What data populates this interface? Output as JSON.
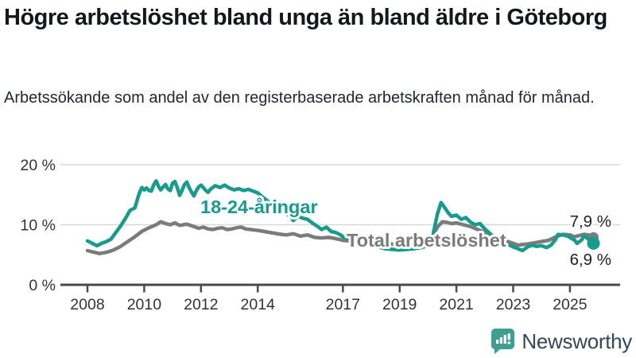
{
  "header": {
    "title": "Högre arbetslöshet bland unga än bland äldre i Göteborg",
    "subtitle": "Arbetssökande som andel av den registerbaserade arbetskraften månad för månad."
  },
  "footer": {
    "brand": "Newsworthy"
  },
  "colors": {
    "young_line": "#169c8f",
    "total_line": "#7b7b7b",
    "axis": "#4a4a4a",
    "gridline": "#d9d9d9",
    "tick_text": "#333333",
    "value_label": "#222222",
    "brand_text": "#33475b",
    "brand_icon": "#3d9e91"
  },
  "chart_data": {
    "type": "line",
    "title": "Högre arbetslöshet bland unga än bland äldre i Göteborg",
    "subtitle": "Arbetssökande som andel av den registerbaserade arbetskraften månad för månad.",
    "xlabel": "",
    "ylabel": "",
    "x_axis": {
      "unit": "year",
      "ticks": [
        2008,
        2010,
        2012,
        2014,
        2017,
        2019,
        2021,
        2023,
        2025
      ],
      "range": [
        2007.9,
        2026.8
      ]
    },
    "y_axis": {
      "tick_values": [
        0,
        10,
        20
      ],
      "tick_labels": [
        "0 %",
        "10 %",
        "20 %"
      ],
      "range": [
        0,
        22
      ],
      "grid": true
    },
    "series": [
      {
        "name": "Total arbetslöshet",
        "key": "total",
        "color": "#7b7b7b",
        "end_label": "7,9 %",
        "end_value": 7.9,
        "points": [
          [
            2008.0,
            5.7
          ],
          [
            2008.25,
            5.4
          ],
          [
            2008.42,
            5.2
          ],
          [
            2008.67,
            5.4
          ],
          [
            2008.92,
            5.8
          ],
          [
            2009.17,
            6.4
          ],
          [
            2009.42,
            7.2
          ],
          [
            2009.67,
            8.0
          ],
          [
            2009.92,
            8.9
          ],
          [
            2010.17,
            9.5
          ],
          [
            2010.42,
            10.0
          ],
          [
            2010.58,
            10.5
          ],
          [
            2010.75,
            10.2
          ],
          [
            2010.92,
            10.0
          ],
          [
            2011.08,
            10.3
          ],
          [
            2011.25,
            9.9
          ],
          [
            2011.5,
            10.1
          ],
          [
            2011.75,
            9.7
          ],
          [
            2011.92,
            9.4
          ],
          [
            2012.08,
            9.6
          ],
          [
            2012.25,
            9.3
          ],
          [
            2012.42,
            9.2
          ],
          [
            2012.58,
            9.4
          ],
          [
            2012.75,
            9.5
          ],
          [
            2012.92,
            9.2
          ],
          [
            2013.08,
            9.3
          ],
          [
            2013.25,
            9.5
          ],
          [
            2013.42,
            9.6
          ],
          [
            2013.58,
            9.3
          ],
          [
            2013.75,
            9.2
          ],
          [
            2013.92,
            9.1
          ],
          [
            2014.08,
            9.0
          ],
          [
            2014.33,
            8.8
          ],
          [
            2014.58,
            8.6
          ],
          [
            2014.83,
            8.4
          ],
          [
            2015.0,
            8.3
          ],
          [
            2015.25,
            8.5
          ],
          [
            2015.5,
            8.1
          ],
          [
            2015.75,
            8.3
          ],
          [
            2016.0,
            7.9
          ],
          [
            2016.25,
            7.8
          ],
          [
            2016.5,
            7.9
          ],
          [
            2016.75,
            7.7
          ],
          [
            2017.0,
            7.4
          ],
          [
            2017.25,
            7.3
          ],
          [
            2017.5,
            7.2
          ],
          [
            2017.75,
            7.1
          ],
          [
            2018.0,
            7.0
          ],
          [
            2018.33,
            6.9
          ],
          [
            2018.67,
            6.8
          ],
          [
            2019.0,
            6.8
          ],
          [
            2019.33,
            6.9
          ],
          [
            2019.67,
            7.0
          ],
          [
            2020.0,
            7.2
          ],
          [
            2020.17,
            8.2
          ],
          [
            2020.33,
            9.6
          ],
          [
            2020.5,
            10.5
          ],
          [
            2020.67,
            10.4
          ],
          [
            2020.83,
            10.2
          ],
          [
            2021.0,
            10.3
          ],
          [
            2021.25,
            10.0
          ],
          [
            2021.5,
            9.7
          ],
          [
            2021.75,
            9.2
          ],
          [
            2022.0,
            8.7
          ],
          [
            2022.25,
            8.2
          ],
          [
            2022.5,
            7.8
          ],
          [
            2022.75,
            7.3
          ],
          [
            2023.0,
            6.9
          ],
          [
            2023.17,
            6.6
          ],
          [
            2023.33,
            6.7
          ],
          [
            2023.5,
            6.8
          ],
          [
            2023.75,
            7.0
          ],
          [
            2024.0,
            7.2
          ],
          [
            2024.25,
            7.4
          ],
          [
            2024.5,
            8.0
          ],
          [
            2024.75,
            8.4
          ],
          [
            2025.0,
            8.3
          ],
          [
            2025.17,
            8.0
          ],
          [
            2025.33,
            8.2
          ],
          [
            2025.5,
            8.4
          ],
          [
            2025.67,
            8.3
          ],
          [
            2025.83,
            7.9
          ]
        ]
      },
      {
        "name": "18-24-åringar",
        "key": "young",
        "color": "#169c8f",
        "end_label": "6,9 %",
        "end_value": 6.9,
        "points": [
          [
            2008.0,
            7.3
          ],
          [
            2008.17,
            6.9
          ],
          [
            2008.33,
            6.5
          ],
          [
            2008.5,
            6.9
          ],
          [
            2008.67,
            7.2
          ],
          [
            2008.83,
            7.6
          ],
          [
            2009.0,
            8.7
          ],
          [
            2009.17,
            9.8
          ],
          [
            2009.33,
            11.0
          ],
          [
            2009.5,
            12.4
          ],
          [
            2009.67,
            12.8
          ],
          [
            2009.83,
            15.3
          ],
          [
            2009.92,
            16.2
          ],
          [
            2010.0,
            15.8
          ],
          [
            2010.08,
            16.1
          ],
          [
            2010.17,
            15.7
          ],
          [
            2010.25,
            15.6
          ],
          [
            2010.33,
            16.6
          ],
          [
            2010.42,
            17.3
          ],
          [
            2010.5,
            16.4
          ],
          [
            2010.58,
            15.8
          ],
          [
            2010.67,
            16.3
          ],
          [
            2010.75,
            16.7
          ],
          [
            2010.83,
            16.0
          ],
          [
            2010.92,
            15.7
          ],
          [
            2011.0,
            16.9
          ],
          [
            2011.08,
            17.2
          ],
          [
            2011.17,
            16.1
          ],
          [
            2011.25,
            14.9
          ],
          [
            2011.33,
            15.7
          ],
          [
            2011.42,
            16.7
          ],
          [
            2011.5,
            17.1
          ],
          [
            2011.58,
            16.2
          ],
          [
            2011.67,
            15.4
          ],
          [
            2011.75,
            14.8
          ],
          [
            2011.83,
            15.6
          ],
          [
            2011.92,
            16.3
          ],
          [
            2012.0,
            16.6
          ],
          [
            2012.08,
            16.2
          ],
          [
            2012.17,
            15.7
          ],
          [
            2012.25,
            15.4
          ],
          [
            2012.33,
            15.9
          ],
          [
            2012.5,
            16.5
          ],
          [
            2012.67,
            16.2
          ],
          [
            2012.83,
            16.6
          ],
          [
            2013.0,
            16.1
          ],
          [
            2013.17,
            15.8
          ],
          [
            2013.33,
            16.0
          ],
          [
            2013.5,
            15.7
          ],
          [
            2013.67,
            15.9
          ],
          [
            2013.83,
            15.6
          ],
          [
            2014.0,
            15.3
          ],
          [
            2014.17,
            14.6
          ],
          [
            2014.33,
            14.0
          ],
          [
            2014.5,
            13.5
          ],
          [
            2014.67,
            12.9
          ],
          [
            2014.83,
            12.4
          ],
          [
            2015.0,
            11.8
          ],
          [
            2015.17,
            11.4
          ],
          [
            2015.25,
            10.7
          ],
          [
            2015.42,
            11.4
          ],
          [
            2015.58,
            11.1
          ],
          [
            2015.75,
            10.9
          ],
          [
            2015.92,
            10.3
          ],
          [
            2016.08,
            9.8
          ],
          [
            2016.25,
            9.2
          ],
          [
            2016.42,
            9.6
          ],
          [
            2016.58,
            8.9
          ],
          [
            2016.75,
            8.7
          ],
          [
            2016.92,
            8.3
          ],
          [
            2017.0,
            8.0
          ],
          [
            2017.25,
            7.7
          ],
          [
            2017.5,
            7.2
          ],
          [
            2017.75,
            6.9
          ],
          [
            2018.0,
            6.6
          ],
          [
            2018.25,
            6.3
          ],
          [
            2018.5,
            6.0
          ],
          [
            2018.75,
            5.9
          ],
          [
            2019.0,
            5.8
          ],
          [
            2019.25,
            5.9
          ],
          [
            2019.5,
            6.0
          ],
          [
            2019.75,
            6.2
          ],
          [
            2020.0,
            6.5
          ],
          [
            2020.17,
            8.2
          ],
          [
            2020.33,
            11.8
          ],
          [
            2020.46,
            13.7
          ],
          [
            2020.58,
            12.9
          ],
          [
            2020.71,
            12.0
          ],
          [
            2020.83,
            11.4
          ],
          [
            2021.0,
            11.6
          ],
          [
            2021.17,
            10.9
          ],
          [
            2021.33,
            11.2
          ],
          [
            2021.5,
            10.4
          ],
          [
            2021.67,
            10.0
          ],
          [
            2021.83,
            10.2
          ],
          [
            2022.0,
            9.3
          ],
          [
            2022.17,
            8.6
          ],
          [
            2022.33,
            7.9
          ],
          [
            2022.5,
            7.5
          ],
          [
            2022.67,
            7.1
          ],
          [
            2022.83,
            6.7
          ],
          [
            2023.0,
            6.3
          ],
          [
            2023.17,
            6.0
          ],
          [
            2023.33,
            5.7
          ],
          [
            2023.5,
            6.3
          ],
          [
            2023.67,
            6.6
          ],
          [
            2023.83,
            6.4
          ],
          [
            2024.0,
            6.5
          ],
          [
            2024.17,
            6.2
          ],
          [
            2024.33,
            6.6
          ],
          [
            2024.5,
            7.6
          ],
          [
            2024.58,
            8.4
          ],
          [
            2024.75,
            8.3
          ],
          [
            2024.92,
            8.1
          ],
          [
            2025.0,
            7.9
          ],
          [
            2025.17,
            7.4
          ],
          [
            2025.25,
            6.9
          ],
          [
            2025.42,
            7.5
          ],
          [
            2025.5,
            8.2
          ],
          [
            2025.67,
            7.5
          ],
          [
            2025.83,
            6.9
          ]
        ]
      }
    ],
    "legend_position": "inline-labels",
    "series_inline_labels": [
      {
        "text": "18-24-åringar",
        "series": "young"
      },
      {
        "text": "Total arbetslöshet",
        "series": "total"
      }
    ]
  }
}
